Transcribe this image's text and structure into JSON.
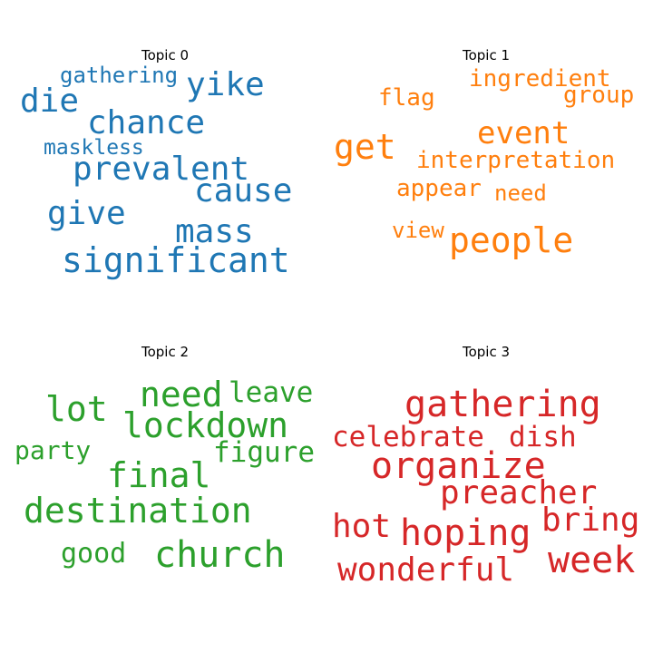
{
  "chart_data": {
    "type": "wordcloud",
    "panels": [
      {
        "title": "Topic 0",
        "color": "#1f77b4",
        "words": [
          "yike",
          "gathering",
          "die",
          "chance",
          "maskless",
          "prevalent",
          "cause",
          "give",
          "mass",
          "significant"
        ]
      },
      {
        "title": "Topic 1",
        "color": "#ff7f0e",
        "words": [
          "ingredient",
          "flag",
          "group",
          "get",
          "event",
          "interpretation",
          "appear",
          "need",
          "view",
          "people"
        ]
      },
      {
        "title": "Topic 2",
        "color": "#2ca02c",
        "words": [
          "need",
          "leave",
          "lot",
          "lockdown",
          "party",
          "figure",
          "final",
          "destination",
          "good",
          "church"
        ]
      },
      {
        "title": "Topic 3",
        "color": "#d62728",
        "words": [
          "gathering",
          "celebrate",
          "dish",
          "organize",
          "preacher",
          "hot",
          "hoping",
          "bring",
          "week",
          "wonderful"
        ]
      }
    ]
  }
}
